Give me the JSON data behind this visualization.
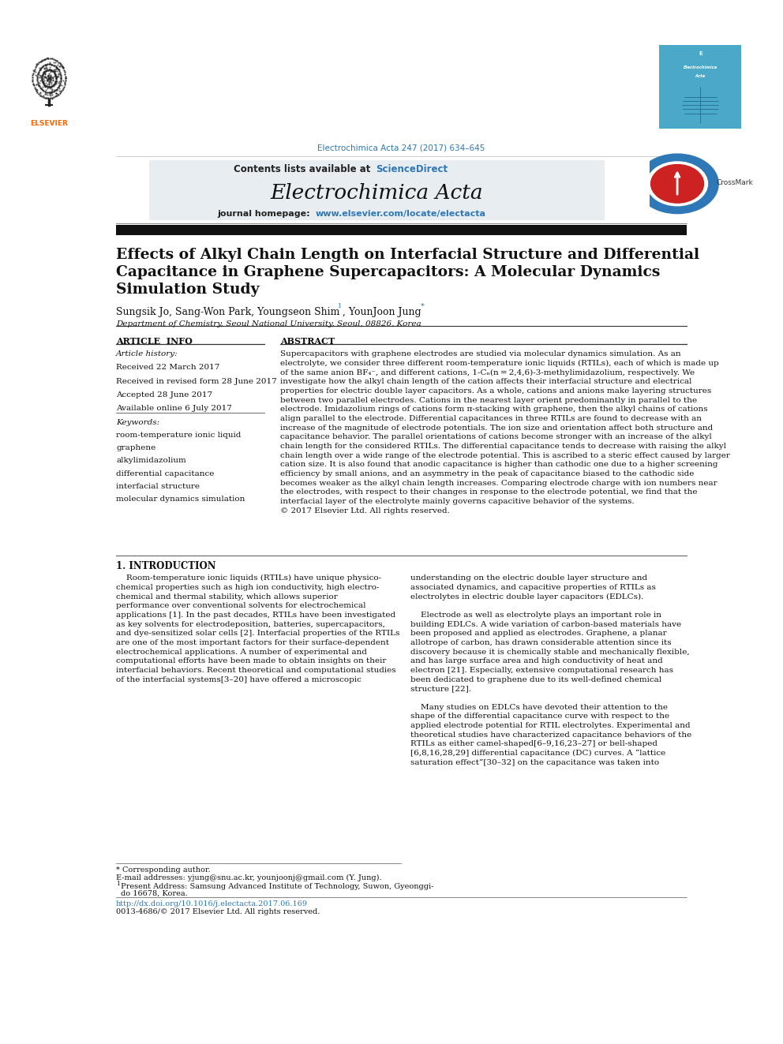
{
  "page_width": 9.92,
  "page_height": 13.23,
  "bg_color": "#ffffff",
  "header_journal_ref": "Electrochimica Acta 247 (2017) 634–645",
  "header_journal_ref_color": "#2e78b7",
  "header_bg_color": "#e8edf2",
  "journal_name": "Electrochimica Acta",
  "sciencedirect_color": "#2e78b7",
  "homepage_url": "www.elsevier.com/locate/electacta",
  "homepage_url_color": "#2e78b7",
  "article_title_line1": "Effects of Alkyl Chain Length on Interfacial Structure and Differential",
  "article_title_line2": "Capacitance in Graphene Supercapacitors: A Molecular Dynamics",
  "article_title_line3": "Simulation Study",
  "affiliation": "Department of Chemistry, Seoul National University, Seoul, 08826, Korea",
  "received1": "Received 22 March 2017",
  "received2": "Received in revised form 28 June 2017",
  "accepted": "Accepted 28 June 2017",
  "available": "Available online 6 July 2017",
  "keywords": [
    "room-temperature ionic liquid",
    "graphene",
    "alkylimidazolium",
    "differential capacitance",
    "interfacial structure",
    "molecular dynamics simulation"
  ],
  "abstract_lines": [
    "Supercapacitors with graphene electrodes are studied via molecular dynamics simulation. As an",
    "electrolyte, we consider three different room-temperature ionic liquids (RTILs), each of which is made up",
    "of the same anion BF₄⁻, and different cations, 1-Cₙ(n = 2,4,6)-3-methylimidazolium, respectively. We",
    "investigate how the alkyl chain length of the cation affects their interfacial structure and electrical",
    "properties for electric double layer capacitors. As a whole, cations and anions make layering structures",
    "between two parallel electrodes. Cations in the nearest layer orient predominantly in parallel to the",
    "electrode. Imidazolium rings of cations form π-stacking with graphene, then the alkyl chains of cations",
    "align parallel to the electrode. Differential capacitances in three RTILs are found to decrease with an",
    "increase of the magnitude of electrode potentials. The ion size and orientation affect both structure and",
    "capacitance behavior. The parallel orientations of cations become stronger with an increase of the alkyl",
    "chain length for the considered RTILs. The differential capacitance tends to decrease with raising the alkyl",
    "chain length over a wide range of the electrode potential. This is ascribed to a steric effect caused by larger",
    "cation size. It is also found that anodic capacitance is higher than cathodic one due to a higher screening",
    "efficiency by small anions, and an asymmetry in the peak of capacitance biased to the cathodic side",
    "becomes weaker as the alkyl chain length increases. Comparing electrode charge with ion numbers near",
    "the electrodes, with respect to their changes in response to the electrode potential, we find that the",
    "interfacial layer of the electrolyte mainly governs capacitive behavior of the systems.",
    "© 2017 Elsevier Ltd. All rights reserved."
  ],
  "intro_col1_lines": [
    "    Room-temperature ionic liquids (RTILs) have unique physico-",
    "chemical properties such as high ion conductivity, high electro-",
    "chemical and thermal stability, which allows superior",
    "performance over conventional solvents for electrochemical",
    "applications [1]. In the past decades, RTILs have been investigated",
    "as key solvents for electrodeposition, batteries, supercapacitors,",
    "and dye-sensitized solar cells [2]. Interfacial properties of the RTILs",
    "are one of the most important factors for their surface-dependent",
    "electrochemical applications. A number of experimental and",
    "computational efforts have been made to obtain insights on their",
    "interfacial behaviors. Recent theoretical and computational studies",
    "of the interfacial systems[3–20] have offered a microscopic"
  ],
  "intro_col2_lines": [
    "understanding on the electric double layer structure and",
    "associated dynamics, and capacitive properties of RTILs as",
    "electrolytes in electric double layer capacitors (EDLCs).",
    "",
    "    Electrode as well as electrolyte plays an important role in",
    "building EDLCs. A wide variation of carbon-based materials have",
    "been proposed and applied as electrodes. Graphene, a planar",
    "allotrope of carbon, has drawn considerable attention since its",
    "discovery because it is chemically stable and mechanically flexible,",
    "and has large surface area and high conductivity of heat and",
    "electron [21]. Especially, extensive computational research has",
    "been dedicated to graphene due to its well-defined chemical",
    "structure [22].",
    "",
    "    Many studies on EDLCs have devoted their attention to the",
    "shape of the differential capacitance curve with respect to the",
    "applied electrode potential for RTIL electrolytes. Experimental and",
    "theoretical studies have characterized capacitance behaviors of the",
    "RTILs as either camel-shaped[6–9,16,23–27] or bell-shaped",
    "[6,8,16,28,29] differential capacitance (DC) curves. A “lattice",
    "saturation effect”[30–32] on the capacitance was taken into"
  ],
  "elsevier_color": "#ff6600",
  "crossmark_blue": "#2e78b7",
  "crossmark_red": "#cc2222"
}
